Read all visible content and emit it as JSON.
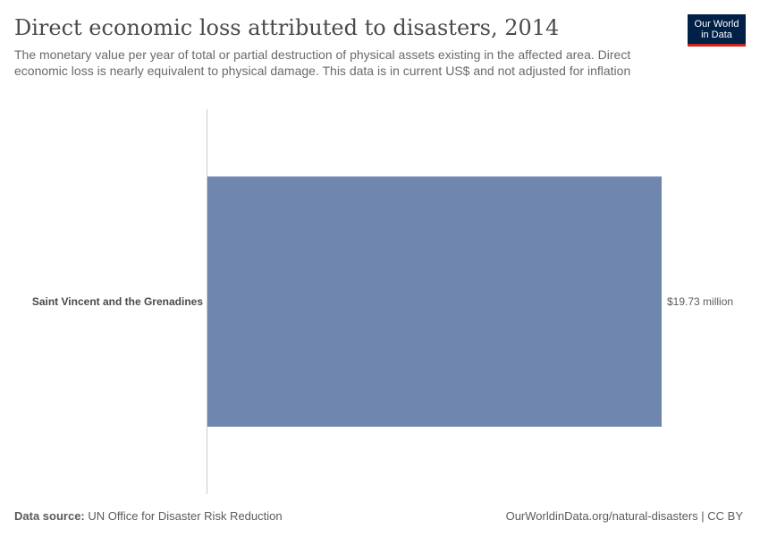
{
  "header": {
    "title": "Direct economic loss attributed to disasters, 2014",
    "subtitle": "The monetary value per year of total or partial destruction of physical assets existing in the affected area. Direct economic loss is nearly equivalent to physical damage. This data is in current US$ and not adjusted for inflation"
  },
  "logo": {
    "line1": "Our World",
    "line2": "in Data"
  },
  "colors": {
    "bar": "#6f87ae",
    "axis": "#cccccc",
    "label": "#4a4a4a",
    "value": "#5b5b5b",
    "logo_bg": "#002147",
    "logo_accent": "#ce261e"
  },
  "chart_data": {
    "type": "bar",
    "orientation": "horizontal",
    "title": "Direct economic loss attributed to disasters, 2014",
    "categories": [
      "Saint Vincent and the Grenadines"
    ],
    "values": [
      19730000
    ],
    "value_labels": [
      "$19.73 million"
    ],
    "unit": "current US$",
    "xlim": [
      0,
      19730000
    ],
    "grid": false
  },
  "footer": {
    "source_label": "Data source:",
    "source_text": "UN Office for Disaster Risk Reduction",
    "url_license": "OurWorldinData.org/natural-disasters | CC BY"
  }
}
